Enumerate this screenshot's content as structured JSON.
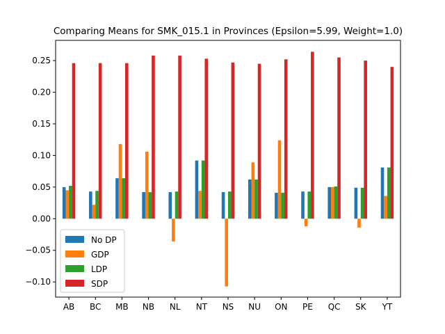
{
  "chart_data": {
    "type": "bar",
    "title": "Comparing Means for SMK_015.1 in Provinces (Epsilon=5.99, Weight=1.0)",
    "xlabel": "",
    "ylabel": "",
    "categories": [
      "AB",
      "BC",
      "MB",
      "NB",
      "NL",
      "NT",
      "NS",
      "NU",
      "ON",
      "PE",
      "QC",
      "SK",
      "YT"
    ],
    "ylim": [
      -0.124,
      0.282
    ],
    "yticks": [
      -0.1,
      -0.05,
      0.0,
      0.05,
      0.1,
      0.15,
      0.2,
      0.25
    ],
    "ytick_labels": [
      "−0.10",
      "−0.05",
      "0.00",
      "0.05",
      "0.10",
      "0.15",
      "0.20",
      "0.25"
    ],
    "grid": false,
    "legend_position": "lower-left",
    "series": [
      {
        "name": "No DP",
        "color": "#1f77b4",
        "values": [
          0.05,
          0.043,
          0.064,
          0.042,
          0.042,
          0.092,
          0.042,
          0.062,
          0.041,
          0.043,
          0.05,
          0.049,
          0.081
        ]
      },
      {
        "name": "GDP",
        "color": "#ff7f0e",
        "values": [
          0.045,
          0.022,
          0.118,
          0.106,
          -0.036,
          0.044,
          -0.107,
          0.089,
          0.124,
          -0.012,
          0.05,
          -0.014,
          0.036
        ]
      },
      {
        "name": "LDP",
        "color": "#2ca02c",
        "values": [
          0.052,
          0.044,
          0.064,
          0.042,
          0.043,
          0.092,
          0.043,
          0.062,
          0.041,
          0.043,
          0.051,
          0.049,
          0.081
        ]
      },
      {
        "name": "SDP",
        "color": "#d62728",
        "values": [
          0.246,
          0.246,
          0.246,
          0.258,
          0.258,
          0.253,
          0.247,
          0.245,
          0.252,
          0.264,
          0.255,
          0.25,
          0.24
        ]
      }
    ]
  }
}
